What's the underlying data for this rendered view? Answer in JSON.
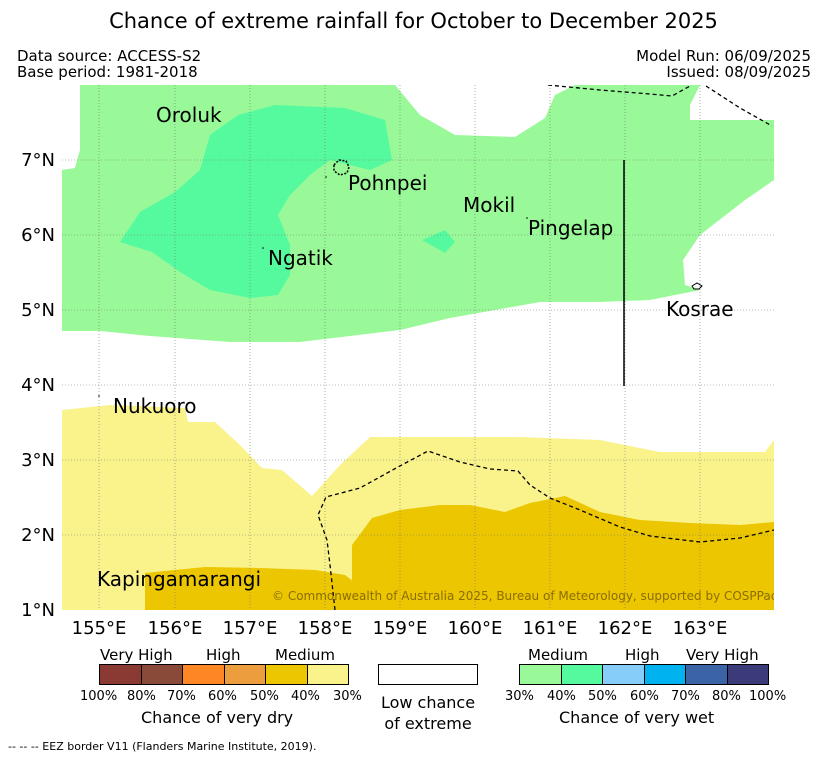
{
  "title": "Chance of extreme rainfall for October to December 2025",
  "meta": {
    "data_source": "Data source: ACCESS-S2",
    "base_period": "Base period: 1981-2018",
    "model_run": "Model Run: 06/09/2025",
    "issued": "Issued: 08/09/2025"
  },
  "map": {
    "lon_labels": [
      "155°E",
      "156°E",
      "157°E",
      "158°E",
      "159°E",
      "160°E",
      "161°E",
      "162°E",
      "163°E"
    ],
    "lat_labels": [
      "7°N",
      "6°N",
      "5°N",
      "4°N",
      "3°N",
      "2°N",
      "1°N"
    ],
    "places": {
      "oroluk": "Oroluk",
      "pohnpei": "Pohnpei",
      "mokil": "Mokil",
      "pingelap": "Pingelap",
      "ngatik": "Ngatik",
      "kosrae": "Kosrae",
      "nukuoro": "Nukuoro",
      "kapingamarangi": "Kapingamarangi"
    },
    "copyright": "© Commonwealth of Australia 2025, Bureau of Meteorology, supported by COSPPac"
  },
  "colors": {
    "wet_30_40": "#99f999",
    "wet_40_50": "#55fa9f",
    "wet_50_60": "#87cdfa",
    "wet_60_70": "#00b2ef",
    "wet_70_80": "#3a64a6",
    "wet_80_100": "#3b3b7a",
    "dry_30_40": "#faf38b",
    "dry_40_50": "#ecc600",
    "dry_50_60": "#ec9e3f",
    "dry_60_70": "#fd8724",
    "dry_70_80": "#8a4a3a",
    "dry_80_100": "#8a3a33"
  },
  "legend": {
    "dry": {
      "levels": [
        "Very High",
        "High",
        "Medium"
      ],
      "ticks": [
        "100%",
        "80%",
        "70%",
        "60%",
        "50%",
        "40%",
        "30%"
      ],
      "caption": "Chance of very dry"
    },
    "low": {
      "caption_line1": "Low chance",
      "caption_line2": "of extreme"
    },
    "wet": {
      "levels": [
        "Medium",
        "High",
        "Very High"
      ],
      "ticks": [
        "30%",
        "40%",
        "50%",
        "60%",
        "70%",
        "80%",
        "100%"
      ],
      "caption": "Chance of very wet"
    }
  },
  "footnote": "-- -- -- EEZ border V11 (Flanders Marine Institute, 2019)."
}
